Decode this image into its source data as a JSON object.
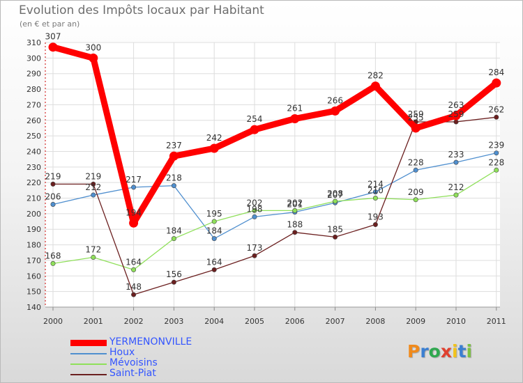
{
  "title": "Evolution des Impôts locaux par Habitant",
  "subtitle": "(en € et par an)",
  "logo": "Proxiti",
  "chart_data": {
    "type": "line",
    "x": [
      "2000",
      "2001",
      "2002",
      "2003",
      "2004",
      "2005",
      "2006",
      "2007",
      "2008",
      "2009",
      "2010",
      "2011"
    ],
    "ylim": [
      140,
      310
    ],
    "yticks": [
      140,
      150,
      160,
      170,
      180,
      190,
      200,
      210,
      220,
      230,
      240,
      250,
      260,
      270,
      280,
      290,
      300,
      310
    ],
    "grid": true,
    "legend": "bottom-left",
    "series": [
      {
        "name": "YERMENONVILLE",
        "color": "#ff0000",
        "values": [
          307,
          300,
          194,
          237,
          242,
          254,
          261,
          266,
          282,
          255,
          263,
          284
        ]
      },
      {
        "name": "Houx",
        "color": "#4f8fcf",
        "values": [
          206,
          212,
          217,
          218,
          184,
          198,
          201,
          207,
          214,
          228,
          233,
          239
        ]
      },
      {
        "name": "Mévoisins",
        "color": "#8fe05a",
        "values": [
          168,
          172,
          164,
          184,
          195,
          202,
          202,
          208,
          210,
          209,
          212,
          228
        ]
      },
      {
        "name": "Saint-Piat",
        "color": "#6b1f1f",
        "values": [
          219,
          219,
          148,
          156,
          164,
          173,
          188,
          185,
          193,
          259,
          259,
          262
        ]
      }
    ]
  }
}
